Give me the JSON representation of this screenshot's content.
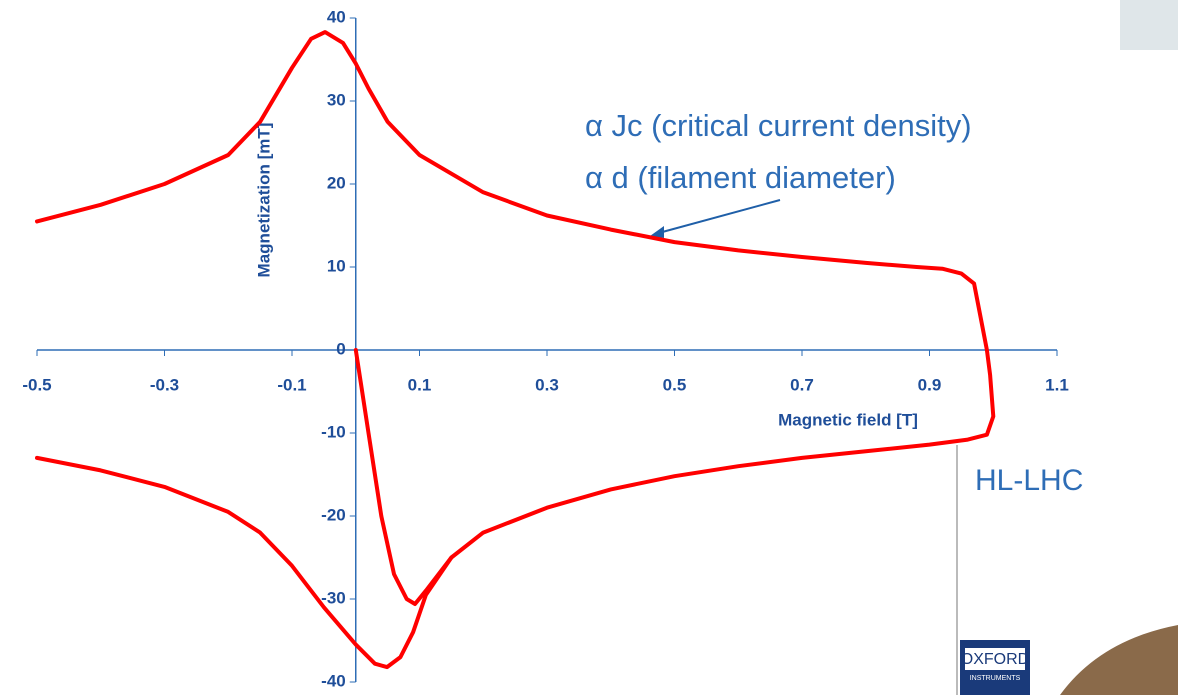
{
  "chart_data": {
    "type": "line",
    "x_label": "Magnetic field [T]",
    "y_label": "Magnetization [mT]",
    "xlim": [
      -0.5,
      1.1
    ],
    "ylim": [
      -40,
      40
    ],
    "xticks": [
      -0.5,
      -0.3,
      -0.1,
      0.1,
      0.3,
      0.5,
      0.7,
      0.9,
      1.1
    ],
    "yticks": [
      -40,
      -30,
      -20,
      -10,
      0,
      10,
      20,
      30,
      40
    ],
    "grid": false,
    "series": [
      {
        "color": "#ff0000",
        "x": [
          0,
          0.02,
          0.04,
          0.06,
          0.08,
          0.093,
          0.11,
          0.15
        ],
        "values": [
          0,
          -10,
          -20,
          -27,
          -30,
          -30.6,
          -29,
          -25
        ]
      },
      {
        "color": "#ff0000",
        "x": [
          -0.5,
          -0.4,
          -0.3,
          -0.2,
          -0.15,
          -0.1,
          -0.05,
          0,
          0.03,
          0.049,
          0.07,
          0.09,
          0.11,
          0.15,
          0.2,
          0.3,
          0.4,
          0.5,
          0.6,
          0.7,
          0.8,
          0.9,
          0.96,
          0.99,
          1.0,
          0.995,
          0.99,
          0.98,
          0.97,
          0.95,
          0.92,
          0.88,
          0.8,
          0.7,
          0.6,
          0.5,
          0.4,
          0.3,
          0.2,
          0.1,
          0.05,
          0.02,
          0,
          -0.02,
          -0.048,
          -0.07,
          -0.1,
          -0.15,
          -0.2,
          -0.3,
          -0.4,
          -0.5
        ],
        "values": [
          -13,
          -14.5,
          -16.5,
          -19.5,
          -22,
          -26,
          -31,
          -35.5,
          -37.8,
          -38.2,
          -37,
          -34,
          -29.5,
          -25,
          -22,
          -19,
          -16.8,
          -15.2,
          -14,
          -13,
          -12.2,
          -11.4,
          -10.8,
          -10.2,
          -8,
          -3,
          0,
          4,
          8,
          9.2,
          9.8,
          10,
          10.5,
          11.2,
          12,
          13,
          14.5,
          16.2,
          19,
          23.5,
          27.5,
          31.5,
          34.5,
          37,
          38.3,
          37.5,
          34,
          27.5,
          23.5,
          20,
          17.5,
          15.5
        ]
      }
    ],
    "annotations": [
      "α Jc (critical current density)",
      "α d (filament diameter)"
    ]
  },
  "slide": {
    "label": "HL-LHC",
    "logo": [
      "OXFORD",
      "INSTRUMENTS"
    ]
  }
}
